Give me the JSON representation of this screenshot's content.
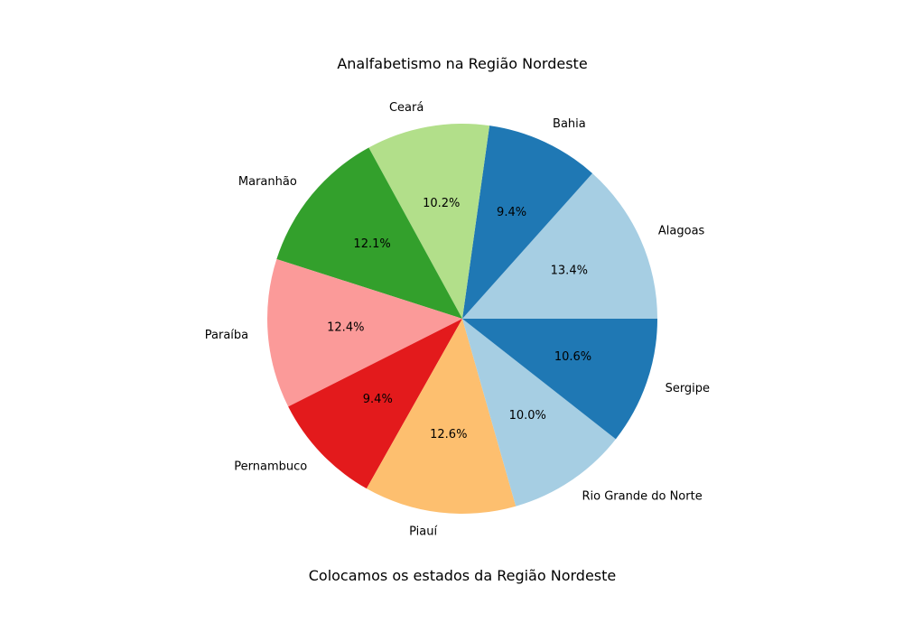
{
  "chart_data": {
    "type": "pie",
    "title": "Analfabetismo na Região Nordeste",
    "xlabel": "Colocamos os estados da Região Nordeste",
    "start_angle_deg": 0,
    "direction": "counterclockwise",
    "slices": [
      {
        "label": "Alagoas",
        "percent": 13.4,
        "percent_label": "13.4%",
        "color": "#a6cee3"
      },
      {
        "label": "Bahia",
        "percent": 9.4,
        "percent_label": "9.4%",
        "color": "#1f78b4"
      },
      {
        "label": "Ceará",
        "percent": 10.2,
        "percent_label": "10.2%",
        "color": "#b2df8a"
      },
      {
        "label": "Maranhão",
        "percent": 12.1,
        "percent_label": "12.1%",
        "color": "#33a02c"
      },
      {
        "label": "Paraíba",
        "percent": 12.4,
        "percent_label": "12.4%",
        "color": "#fb9a99"
      },
      {
        "label": "Pernambuco",
        "percent": 9.4,
        "percent_label": "9.4%",
        "color": "#e31a1c"
      },
      {
        "label": "Piauí",
        "percent": 12.6,
        "percent_label": "12.6%",
        "color": "#fdbf6f"
      },
      {
        "label": "Rio Grande do Norte",
        "percent": 10.0,
        "percent_label": "10.0%",
        "color": "#a6cee3"
      },
      {
        "label": "Sergipe",
        "percent": 10.6,
        "percent_label": "10.6%",
        "color": "#1f78b4"
      }
    ]
  }
}
